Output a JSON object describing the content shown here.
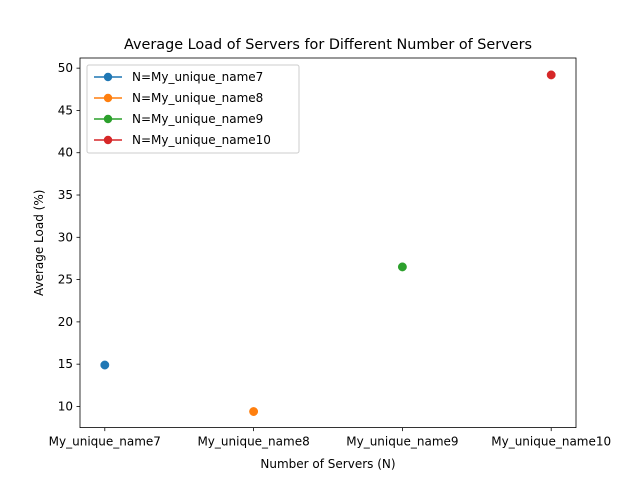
{
  "chart_data": {
    "type": "line",
    "title": "Average Load of Servers for Different Number of Servers",
    "xlabel": "Number of Servers (N)",
    "ylabel": "Average Load (%)",
    "categories": [
      "My_unique_name7",
      "My_unique_name8",
      "My_unique_name9",
      "My_unique_name10"
    ],
    "ylim": [
      7.5,
      51.2
    ],
    "yticks": [
      10,
      15,
      20,
      25,
      30,
      35,
      40,
      45,
      50
    ],
    "grid": false,
    "legend_position": "top-left",
    "series": [
      {
        "name": "N=My_unique_name7",
        "color": "#1f77b4",
        "points": [
          {
            "x": "My_unique_name7",
            "y": 14.9
          }
        ]
      },
      {
        "name": "N=My_unique_name8",
        "color": "#ff7f0e",
        "points": [
          {
            "x": "My_unique_name8",
            "y": 9.4
          }
        ]
      },
      {
        "name": "N=My_unique_name9",
        "color": "#2ca02c",
        "points": [
          {
            "x": "My_unique_name9",
            "y": 26.5
          }
        ]
      },
      {
        "name": "N=My_unique_name10",
        "color": "#d62728",
        "points": [
          {
            "x": "My_unique_name10",
            "y": 49.2
          }
        ]
      }
    ]
  }
}
